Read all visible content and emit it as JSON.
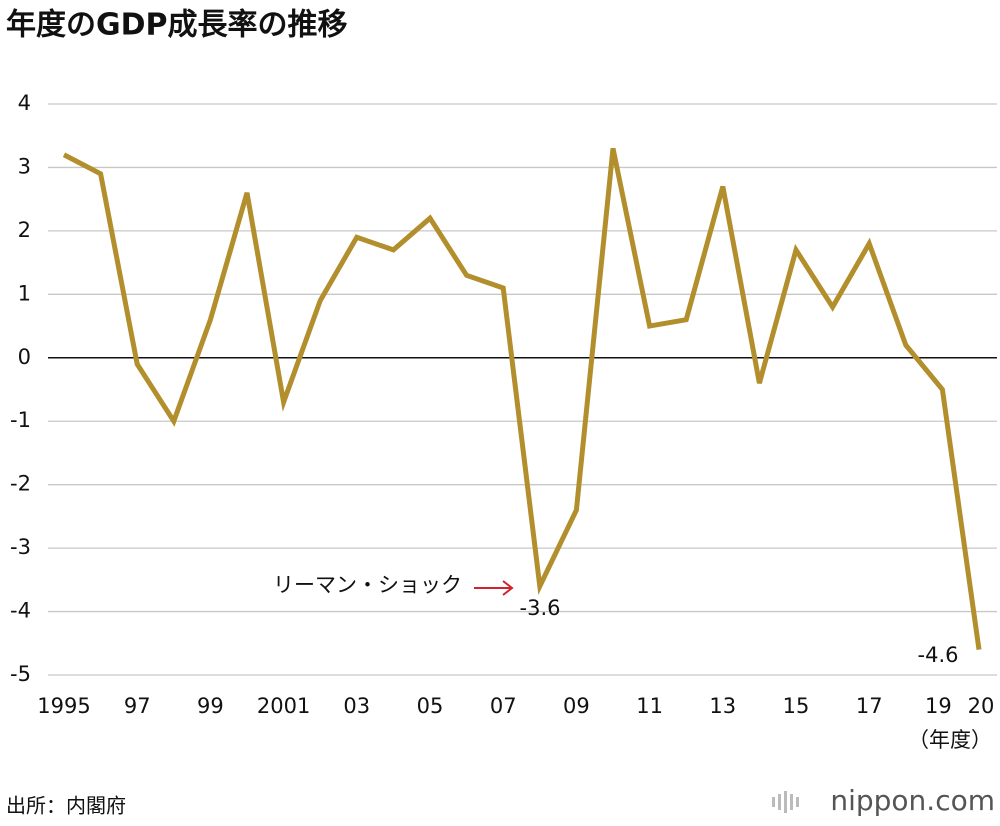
{
  "chart_data": {
    "type": "line",
    "title": "年度のGDP成長率の推移",
    "categories": [
      "1995",
      null,
      "97",
      null,
      "99",
      null,
      "2001",
      null,
      "03",
      null,
      "05",
      null,
      "07",
      null,
      "09",
      null,
      "11",
      null,
      "13",
      null,
      "15",
      null,
      "17",
      null,
      "19",
      "20"
    ],
    "values": [
      3.2,
      2.9,
      -0.1,
      -1.0,
      0.6,
      2.6,
      -0.7,
      0.9,
      1.9,
      1.7,
      2.2,
      1.3,
      1.1,
      -3.6,
      -2.4,
      3.3,
      0.5,
      0.6,
      2.7,
      -0.4,
      1.7,
      0.8,
      1.8,
      0.2,
      -0.5,
      -4.6
    ],
    "color": "#b28f2c",
    "ylim": [
      -5,
      4
    ],
    "yticks": [
      -5,
      -4,
      -3,
      -2,
      -1,
      0,
      1,
      2,
      3,
      4
    ],
    "grid": true,
    "x_unit": "（年度）",
    "annotation": "リーマン・ショック",
    "source": "出所：内閣府",
    "logo": "nippon.com"
  }
}
